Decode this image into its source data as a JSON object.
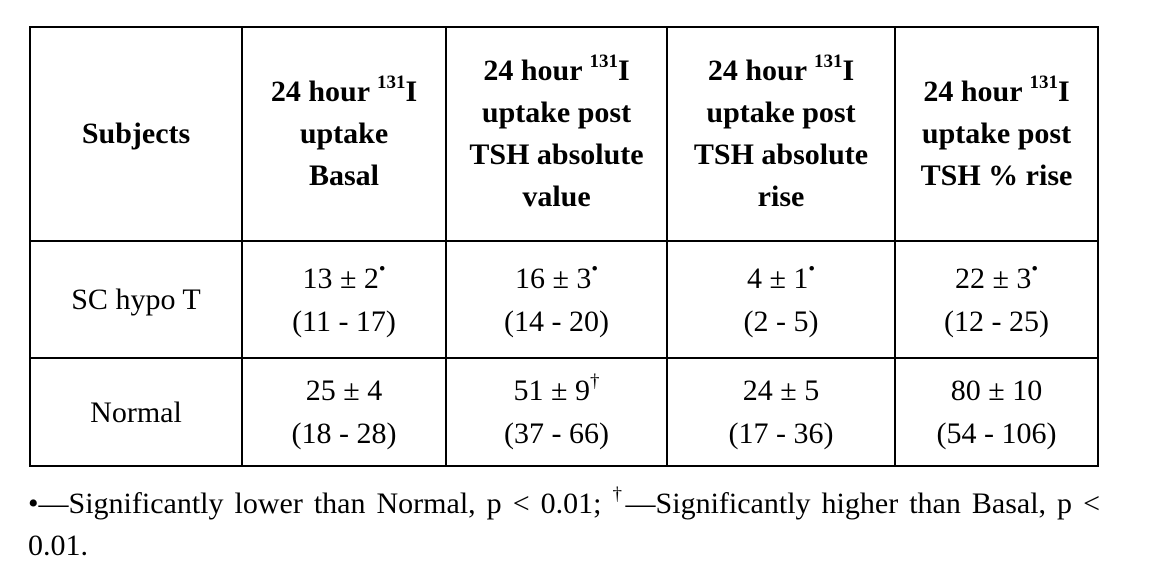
{
  "table": {
    "headers": [
      {
        "lines": [
          "Subjects"
        ]
      },
      {
        "lines": [
          "24 hour ",
          "uptake",
          "Basal"
        ],
        "isotope_sup": "131",
        "isotope_tail": "I"
      },
      {
        "lines": [
          "24 hour ",
          "uptake post",
          "TSH absolute",
          "value"
        ],
        "isotope_sup": "131",
        "isotope_tail": "I"
      },
      {
        "lines": [
          "24 hour ",
          "uptake post",
          "TSH absolute",
          "rise"
        ],
        "isotope_sup": "131",
        "isotope_tail": "I"
      },
      {
        "lines": [
          "24 hour ",
          "uptake post",
          "TSH % rise"
        ],
        "isotope_sup": "131",
        "isotope_tail": "I"
      }
    ],
    "rows": [
      {
        "subject": "SC hypo T",
        "cells": [
          {
            "mean": "13 ± 2",
            "mark": "•",
            "range": "(11 - 17)"
          },
          {
            "mean": "16 ± 3",
            "mark": "•",
            "range": "(14 - 20)"
          },
          {
            "mean": "4 ± 1",
            "mark": "•",
            "range": "(2 - 5)"
          },
          {
            "mean": "22 ± 3",
            "mark": "•",
            "range": "(12 - 25)"
          }
        ]
      },
      {
        "subject": "Normal",
        "cells": [
          {
            "mean": "25 ± 4",
            "mark": "",
            "range": "(18 - 28)"
          },
          {
            "mean": "51 ± 9",
            "mark": "†",
            "range": "(37 - 66)"
          },
          {
            "mean": "24 ± 5",
            "mark": "",
            "range": "(17 - 36)"
          },
          {
            "mean": "80 ± 10",
            "mark": "",
            "range": "(54 - 106)"
          }
        ]
      }
    ]
  },
  "footnote": {
    "bullet": "•",
    "part1": "—Significantly lower than Normal, p < 0.01; ",
    "dagger": "†",
    "part2": "—Significantly higher than Basal, p < 0.01."
  }
}
